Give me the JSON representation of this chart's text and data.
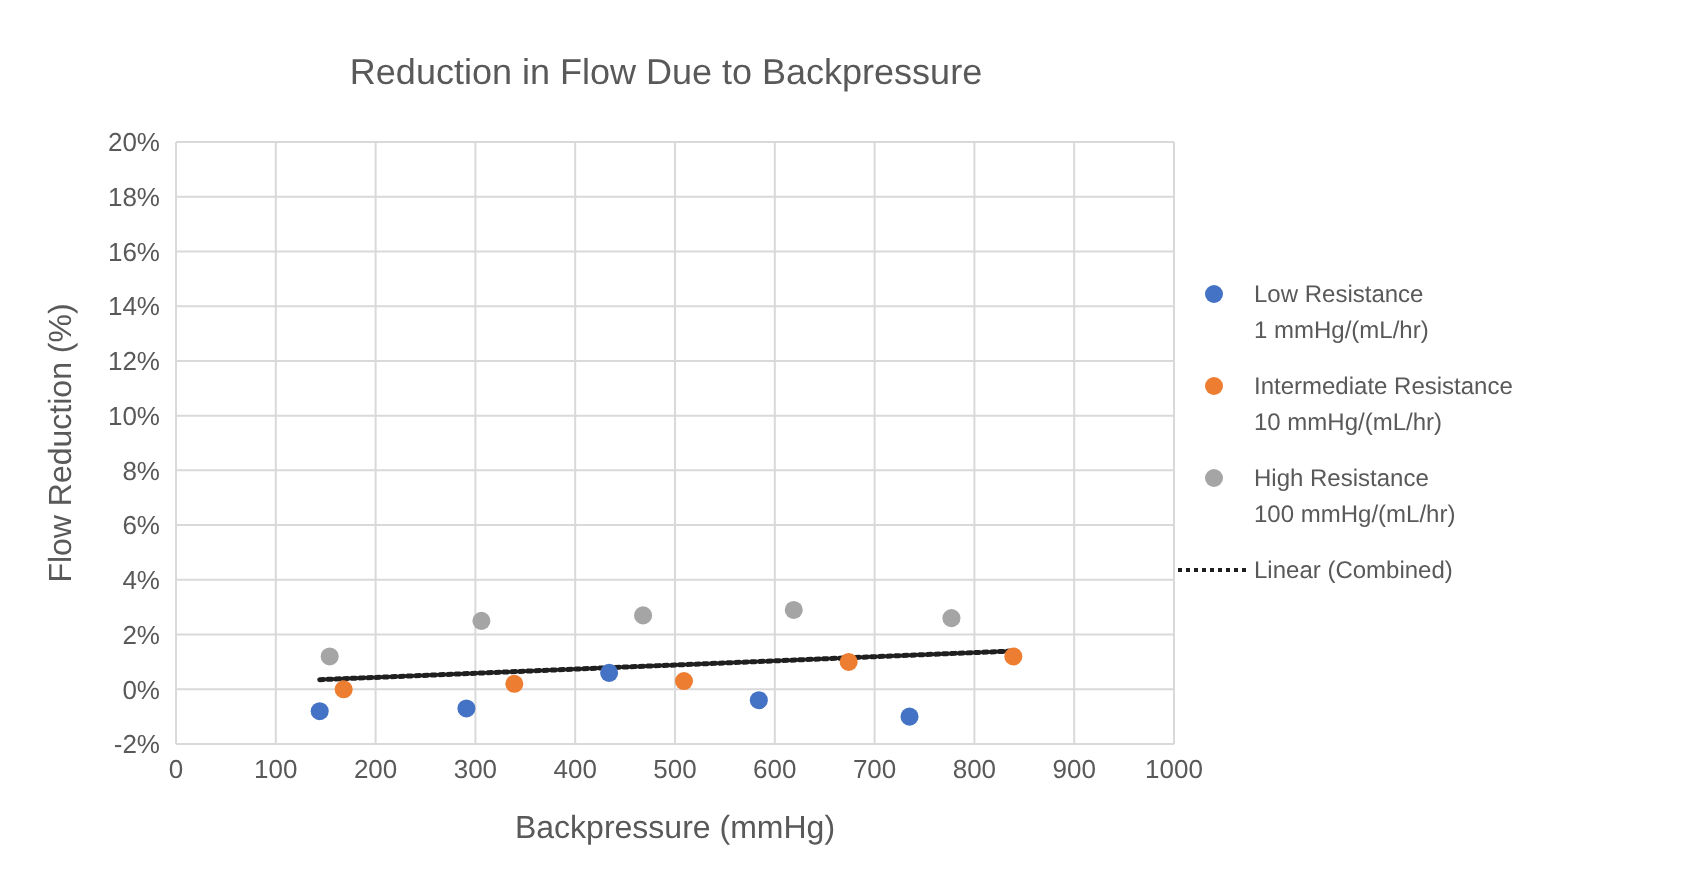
{
  "chart_data": {
    "type": "scatter",
    "title": "Reduction in Flow Due to Backpressure",
    "xlabel": "Backpressure (mmHg)",
    "ylabel": "Flow Reduction (%)",
    "xlim": [
      0,
      1000
    ],
    "xticks": [
      0,
      100,
      200,
      300,
      400,
      500,
      600,
      700,
      800,
      900,
      1000
    ],
    "ylim": [
      -2,
      20
    ],
    "yticks": [
      {
        "value": -2,
        "label": "-2%"
      },
      {
        "value": 0,
        "label": "0%"
      },
      {
        "value": 2,
        "label": "2%"
      },
      {
        "value": 4,
        "label": "4%"
      },
      {
        "value": 6,
        "label": "6%"
      },
      {
        "value": 8,
        "label": "8%"
      },
      {
        "value": 10,
        "label": "10%"
      },
      {
        "value": 12,
        "label": "12%"
      },
      {
        "value": 14,
        "label": "14%"
      },
      {
        "value": 16,
        "label": "16%"
      },
      {
        "value": 18,
        "label": "18%"
      },
      {
        "value": 20,
        "label": "20%"
      }
    ],
    "grid": true,
    "legend": "right",
    "marker": "circle",
    "series": [
      {
        "name": "Low Resistance\n1 mmHg/(mL/hr)",
        "color": "#4472c4",
        "x": [
          144,
          291,
          434,
          584,
          735
        ],
        "values": [
          -0.8,
          -0.7,
          0.6,
          -0.4,
          -1.0
        ]
      },
      {
        "name": "Intermediate Resistance\n10 mmHg/(mL/hr)",
        "color": "#ed7d31",
        "x": [
          168,
          339,
          509,
          674,
          839
        ],
        "values": [
          0.0,
          0.2,
          0.3,
          1.0,
          1.2
        ]
      },
      {
        "name": "High Resistance\n100 mmHg/(mL/hr)",
        "color": "#a5a5a5",
        "x": [
          154,
          306,
          468,
          619,
          777
        ],
        "values": [
          1.2,
          2.5,
          2.7,
          2.9,
          2.6
        ]
      },
      {
        "name": "Linear (Combined)",
        "type": "line",
        "color": "#1f1f1f",
        "line_style": "dotted",
        "marker": "none",
        "x": [
          144,
          839
        ],
        "values": [
          0.35,
          1.4
        ]
      }
    ]
  }
}
